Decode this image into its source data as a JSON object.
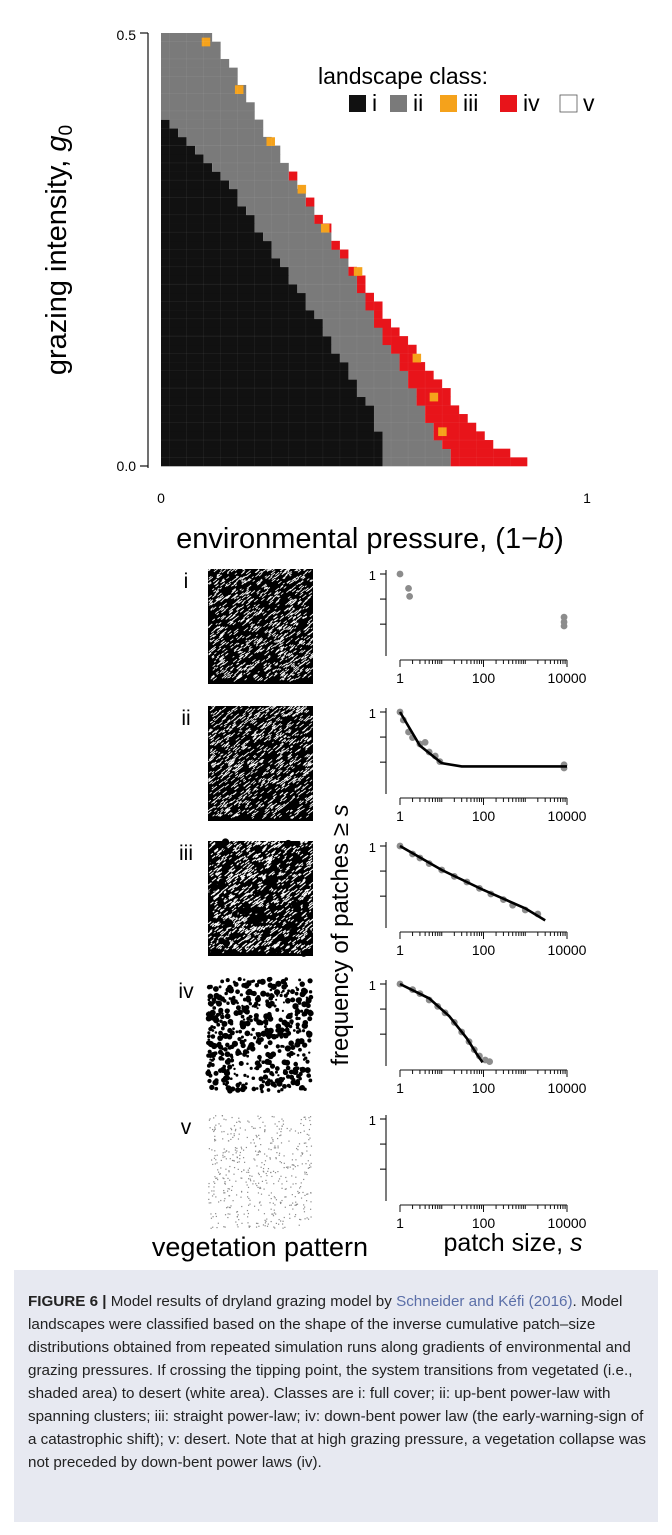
{
  "chart_data": [
    {
      "type": "heatmap",
      "title": "",
      "xlabel": "environmental pressure, (1−b)",
      "xlabel_main": "environmental pressure, (1−",
      "xlabel_var": "b",
      "xlabel_tail": ")",
      "ylabel": "grazing intensity, g0",
      "ylabel_main": "grazing intensity, ",
      "ylabel_var": "g",
      "ylabel_sub": "0",
      "xlim": [
        0,
        1
      ],
      "ylim": [
        0,
        0.5
      ],
      "x_ticks": [
        "0",
        "1"
      ],
      "y_ticks": [
        "0.0",
        "0.5"
      ],
      "legend": {
        "title": "landscape class:",
        "position": "top-right",
        "entries": [
          {
            "label": "i",
            "color": "#111111"
          },
          {
            "label": "ii",
            "color": "#7a7a7a"
          },
          {
            "label": "iii",
            "color": "#f5a21b"
          },
          {
            "label": "iv",
            "color": "#e8141a"
          },
          {
            "label": "v",
            "color": "#ffffff"
          }
        ]
      },
      "boundaries": {
        "i_ii": [
          [
            0,
            0.41
          ],
          [
            0.17,
            0.32
          ],
          [
            0.34,
            0.19
          ],
          [
            0.5,
            0.06
          ],
          [
            0.53,
            0.0
          ]
        ],
        "ii_edge": [
          [
            0,
            0.5
          ],
          [
            0.12,
            0.5
          ],
          [
            0.3,
            0.34
          ],
          [
            0.45,
            0.22
          ],
          [
            0.62,
            0.06
          ],
          [
            0.69,
            0.0
          ]
        ],
        "veg_desert": [
          [
            0.1,
            0.5
          ],
          [
            0.36,
            0.3
          ],
          [
            0.55,
            0.16
          ],
          [
            0.76,
            0.03
          ],
          [
            0.87,
            0.0
          ]
        ]
      },
      "class_iii_cells": [
        [
          0.105,
          0.49
        ],
        [
          0.183,
          0.435
        ],
        [
          0.257,
          0.375
        ],
        [
          0.33,
          0.32
        ],
        [
          0.385,
          0.275
        ],
        [
          0.462,
          0.225
        ],
        [
          0.6,
          0.125
        ],
        [
          0.64,
          0.08
        ],
        [
          0.66,
          0.04
        ]
      ]
    },
    {
      "type": "scatter",
      "ylabel": "frequency of  patches ≥ s",
      "ylabel_main": "frequency of  patches ≥ ",
      "ylabel_var": "s",
      "xlabel_main": "patch size, ",
      "xlabel_var": "s",
      "x_ticks": [
        "1",
        "100",
        "10000"
      ],
      "y_tick": "1",
      "xscale": "log",
      "yscale": "log",
      "xlim": [
        1,
        10000
      ],
      "panels": [
        {
          "label": "i",
          "points": [
            [
              1,
              1.0
            ],
            [
              1.6,
              0.82
            ],
            [
              1.7,
              0.72
            ],
            [
              8500,
              0.46
            ],
            [
              8500,
              0.4
            ],
            [
              8500,
              0.35
            ]
          ],
          "fit": []
        },
        {
          "label": "ii",
          "points": [
            [
              1,
              1.0
            ],
            [
              1.2,
              0.9
            ],
            [
              1.6,
              0.75
            ],
            [
              2,
              0.68
            ],
            [
              3,
              0.6
            ],
            [
              4,
              0.62
            ],
            [
              5,
              0.5
            ],
            [
              7,
              0.45
            ],
            [
              9,
              0.38
            ],
            [
              8500,
              0.34
            ],
            [
              8500,
              0.3
            ]
          ],
          "fit": [
            [
              1,
              1.0
            ],
            [
              3,
              0.58
            ],
            [
              10,
              0.36
            ],
            [
              30,
              0.32
            ],
            [
              10000,
              0.32
            ]
          ]
        },
        {
          "label": "iii",
          "points": [
            [
              1,
              1.0
            ],
            [
              2,
              0.9
            ],
            [
              3,
              0.85
            ],
            [
              5,
              0.78
            ],
            [
              10,
              0.7
            ],
            [
              20,
              0.62
            ],
            [
              40,
              0.55
            ],
            [
              80,
              0.47
            ],
            [
              150,
              0.4
            ],
            [
              300,
              0.33
            ],
            [
              500,
              0.26
            ],
            [
              1000,
              0.2
            ],
            [
              2000,
              0.15
            ]
          ],
          "fit": [
            [
              1,
              1.0
            ],
            [
              10,
              0.7
            ],
            [
              100,
              0.45
            ],
            [
              1000,
              0.22
            ],
            [
              3000,
              0.07
            ]
          ]
        },
        {
          "label": "iv",
          "points": [
            [
              1,
              1.0
            ],
            [
              2,
              0.93
            ],
            [
              3,
              0.88
            ],
            [
              5,
              0.8
            ],
            [
              8,
              0.72
            ],
            [
              12,
              0.64
            ],
            [
              20,
              0.52
            ],
            [
              30,
              0.4
            ],
            [
              45,
              0.28
            ],
            [
              60,
              0.18
            ],
            [
              80,
              0.1
            ],
            [
              110,
              0.05
            ],
            [
              140,
              0.03
            ]
          ],
          "fit": [
            [
              1,
              1.0
            ],
            [
              5,
              0.82
            ],
            [
              15,
              0.6
            ],
            [
              40,
              0.32
            ],
            [
              70,
              0.12
            ],
            [
              95,
              0.02
            ]
          ]
        },
        {
          "label": "v",
          "points": [],
          "fit": []
        }
      ]
    }
  ],
  "bottom_labels": {
    "vegetation_pattern": "vegetation pattern"
  },
  "caption": {
    "figure_label": "FIGURE 6 |",
    "text_before_ref": " Model results of dryland grazing model by ",
    "ref": "Schneider and Kéfi (2016)",
    "text_after_ref": ". Model landscapes were classified based on the shape of the inverse cumulative patch–size distributions obtained from repeated simulation runs along gradients of environmental and grazing pressures. If crossing the tipping point, the system transitions from vegetated (i.e., shaded area) to desert (white area). Classes are i: full cover; ii: up-bent power-law with spanning clusters; iii: straight power-law; iv: down-bent power law (the early-warning-sign of a catastrophic shift); v: desert. Note that at high grazing pressure, a vegetation collapse was not preceded by down-bent power laws (iv)."
  }
}
